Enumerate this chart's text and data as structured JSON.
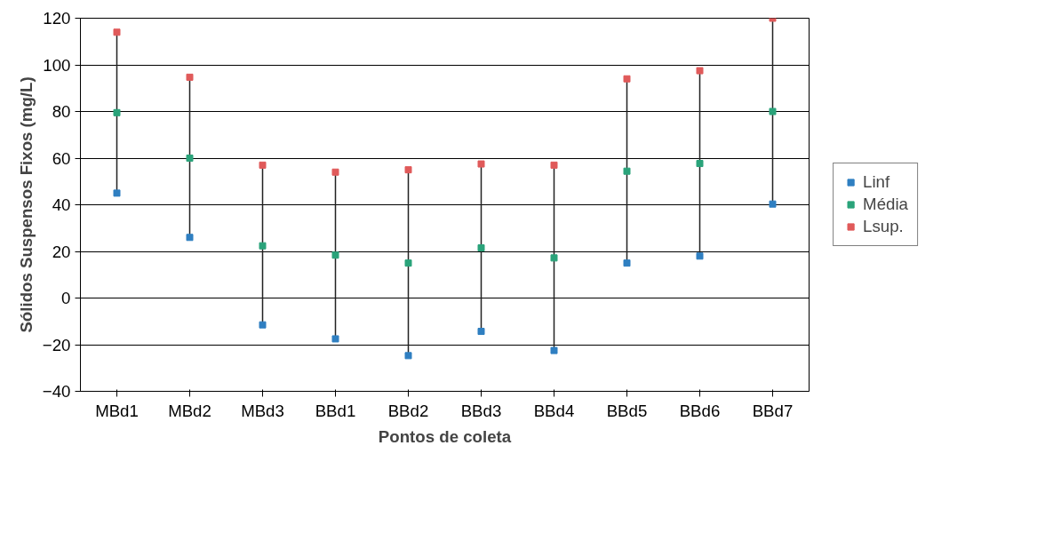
{
  "chart_data": {
    "type": "scatter",
    "xlabel": "Pontos de coleta",
    "ylabel": "Sólidos Suspensos Fixos (mg/L)",
    "categories": [
      "MBd1",
      "MBd2",
      "MBd3",
      "BBd1",
      "BBd2",
      "BBd3",
      "BBd4",
      "BBd5",
      "BBd6",
      "BBd7"
    ],
    "series": [
      {
        "name": "Linf",
        "color": "#2f7fc1",
        "values": [
          45,
          26,
          -11.5,
          -17.5,
          -24.7,
          -14.3,
          -22.5,
          15,
          18,
          40.3
        ]
      },
      {
        "name": "Média",
        "color": "#2aa37a",
        "values": [
          79.5,
          60,
          22.4,
          18.4,
          15,
          21.5,
          17.2,
          54.4,
          57.7,
          80
        ]
      },
      {
        "name": "Lsup.",
        "color": "#e05a5a",
        "values": [
          114,
          94.7,
          57,
          54,
          55,
          57.5,
          57,
          94,
          97.5,
          120
        ]
      }
    ],
    "ylim": [
      -40,
      120
    ],
    "yticks": [
      -40,
      -20,
      0,
      20,
      40,
      60,
      80,
      100,
      120
    ],
    "grid": "y",
    "legend": "right",
    "marker": "square"
  }
}
